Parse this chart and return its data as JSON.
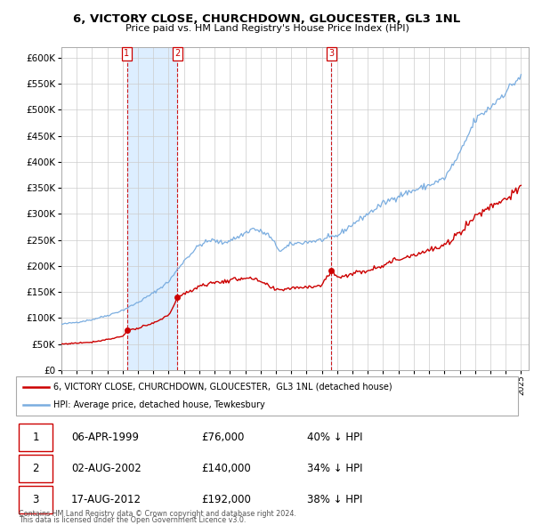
{
  "title": "6, VICTORY CLOSE, CHURCHDOWN, GLOUCESTER, GL3 1NL",
  "subtitle": "Price paid vs. HM Land Registry's House Price Index (HPI)",
  "legend_red": "6, VICTORY CLOSE, CHURCHDOWN, GLOUCESTER,  GL3 1NL (detached house)",
  "legend_blue": "HPI: Average price, detached house, Tewkesbury",
  "table": [
    {
      "num": "1",
      "date": "06-APR-1999",
      "price": "£76,000",
      "pct": "40% ↓ HPI"
    },
    {
      "num": "2",
      "date": "02-AUG-2002",
      "price": "£140,000",
      "pct": "34% ↓ HPI"
    },
    {
      "num": "3",
      "date": "17-AUG-2012",
      "price": "£192,000",
      "pct": "38% ↓ HPI"
    }
  ],
  "footnote1": "Contains HM Land Registry data © Crown copyright and database right 2024.",
  "footnote2": "This data is licensed under the Open Government Licence v3.0.",
  "red_color": "#cc0000",
  "blue_color": "#7aade0",
  "shade_color": "#ddeeff",
  "bg_color": "#ffffff",
  "grid_color": "#cccccc",
  "ylim": [
    0,
    620000
  ],
  "yticks": [
    0,
    50000,
    100000,
    150000,
    200000,
    250000,
    300000,
    350000,
    400000,
    450000,
    500000,
    550000,
    600000
  ],
  "sale_dates": [
    1999.27,
    2002.58,
    2012.63
  ],
  "sale_prices": [
    76000,
    140000,
    192000
  ],
  "sale_markers": [
    "1",
    "2",
    "3"
  ]
}
